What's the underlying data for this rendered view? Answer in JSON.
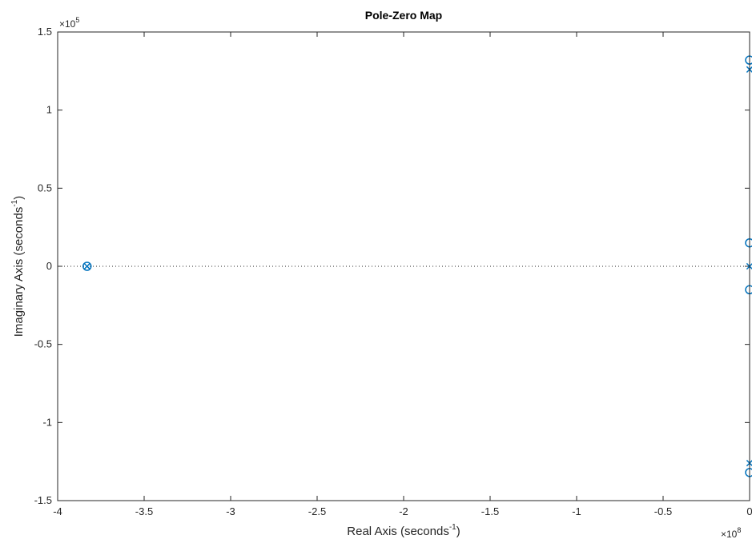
{
  "chart_data": {
    "type": "scatter",
    "title": "Pole-Zero Map",
    "xlabel": {
      "main": "Real Axis (seconds",
      "sup": "-1",
      "close": ")"
    },
    "ylabel": {
      "main": "Imaginary Axis (seconds",
      "sup": "-1",
      "close": ")"
    },
    "x_exponent": {
      "base": "×10",
      "power": "8"
    },
    "y_exponent": {
      "base": "×10",
      "power": "5"
    },
    "xlim": [
      -4,
      0
    ],
    "ylim": [
      -1.5,
      1.5
    ],
    "x_scale_factor": 100000000,
    "y_scale_factor": 100000,
    "xticks": [
      -4,
      -3.5,
      -3,
      -2.5,
      -2,
      -1.5,
      -1,
      -0.5,
      0
    ],
    "xtick_labels": [
      "-4",
      "-3.5",
      "-3",
      "-2.5",
      "-2",
      "-1.5",
      "-1",
      "-0.5",
      "0"
    ],
    "yticks": [
      -1.5,
      -1,
      -0.5,
      0,
      0.5,
      1,
      1.5
    ],
    "ytick_labels": [
      "-1.5",
      "-1",
      "-0.5",
      "0",
      "0.5",
      "1",
      "1.5"
    ],
    "grid": false,
    "zero_line": "dotted",
    "series": [
      {
        "marker": "x",
        "points": [
          {
            "x": -3.83,
            "y": 0
          },
          {
            "x": 0,
            "y": 0
          },
          {
            "x": 0,
            "y": 1.26
          },
          {
            "x": 0,
            "y": -1.26
          }
        ]
      },
      {
        "marker": "o",
        "points": [
          {
            "x": -3.83,
            "y": 0
          },
          {
            "x": 0,
            "y": 1.32
          },
          {
            "x": 0,
            "y": -1.32
          },
          {
            "x": 0,
            "y": 0.15
          },
          {
            "x": 0,
            "y": -0.15
          }
        ]
      }
    ]
  },
  "colors": {
    "marker": "#0072BD",
    "axis": "#262626"
  }
}
